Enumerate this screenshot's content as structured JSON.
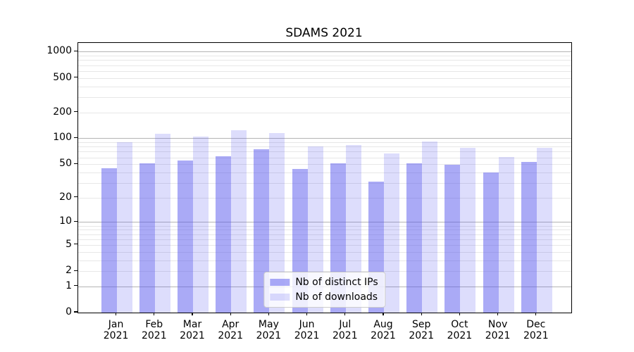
{
  "title": "SDAMS 2021",
  "chart_data": {
    "type": "bar",
    "title": "SDAMS 2021",
    "categories": [
      "Jan",
      "Feb",
      "Mar",
      "Apr",
      "May",
      "Jun",
      "Jul",
      "Aug",
      "Sep",
      "Oct",
      "Nov",
      "Dec"
    ],
    "category_year": "2021",
    "series": [
      {
        "name": "Nb of distinct IPs",
        "color": "#5555ee",
        "alpha": 0.5,
        "values": [
          45,
          51,
          55,
          62,
          74,
          44,
          51,
          31,
          51,
          49,
          40,
          53
        ]
      },
      {
        "name": "Nb of downloads",
        "color": "#5555ee",
        "alpha": 0.2,
        "values": [
          90,
          112,
          105,
          124,
          115,
          80,
          84,
          66,
          92,
          78,
          61,
          78
        ]
      }
    ],
    "xlabel": "",
    "ylabel": "",
    "yscale": "log1p",
    "ylim": [
      0,
      1260
    ],
    "ytick_labels": [
      "0",
      "1",
      "2",
      "5",
      "10",
      "20",
      "50",
      "100",
      "200",
      "500",
      "1000"
    ],
    "yticks": [
      0,
      1,
      2,
      5,
      10,
      20,
      50,
      100,
      200,
      500,
      1000
    ],
    "grid": {
      "on": true,
      "major_values": [
        1,
        10,
        100,
        1000
      ],
      "minor_multipliers": [
        2,
        3,
        4,
        5,
        6,
        7,
        8,
        9
      ],
      "major_color": "#b4b4b4",
      "minor_color": "#e7e7e7"
    },
    "legend": {
      "position": "lower center",
      "entries": [
        "Nb of distinct IPs",
        "Nb of downloads"
      ]
    }
  }
}
